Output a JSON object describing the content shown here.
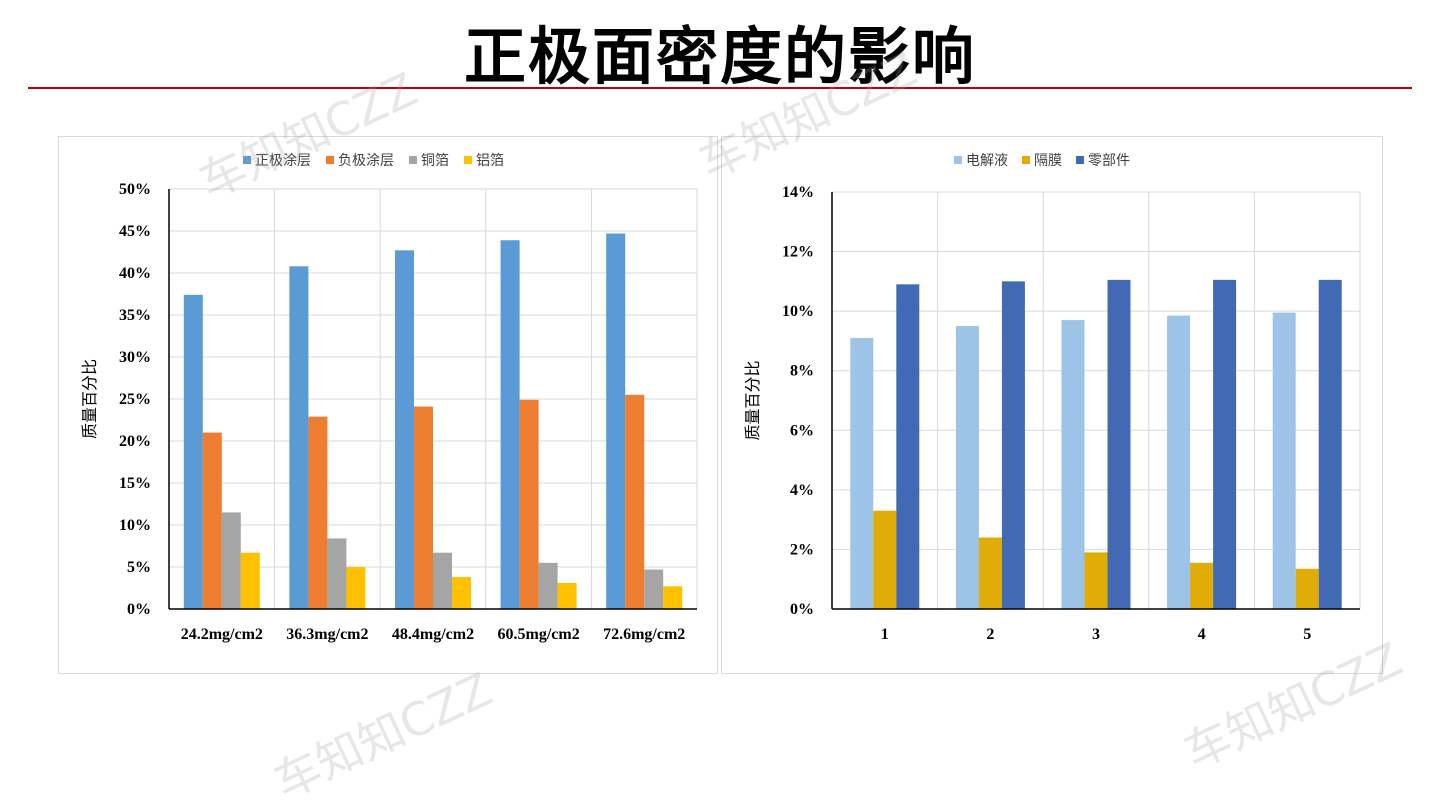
{
  "slide": {
    "title": "正极面密度的影响"
  },
  "watermark": {
    "text": "车知知CZZ"
  },
  "colors": {
    "title_rule": "#c00000"
  },
  "chart_data": [
    {
      "type": "bar",
      "title": "",
      "xlabel": "",
      "ylabel": "质量百分比",
      "ylim": [
        0,
        50
      ],
      "y_unit": "%",
      "y_ticks": [
        0,
        5,
        10,
        15,
        20,
        25,
        30,
        35,
        40,
        45,
        50
      ],
      "grid": true,
      "legend_position": "top",
      "categories": [
        "24.2mg/cm2",
        "36.3mg/cm2",
        "48.4mg/cm2",
        "60.5mg/cm2",
        "72.6mg/cm2"
      ],
      "series": [
        {
          "name": "正极涂层",
          "color": "#5b9bd5",
          "values": [
            37.4,
            40.8,
            42.7,
            43.9,
            44.7
          ]
        },
        {
          "name": "负极涂层",
          "color": "#ed7d31",
          "values": [
            21.0,
            22.9,
            24.1,
            24.9,
            25.5
          ]
        },
        {
          "name": "铜箔",
          "color": "#a5a5a5",
          "values": [
            11.5,
            8.4,
            6.7,
            5.5,
            4.7
          ]
        },
        {
          "name": "铝箔",
          "color": "#ffc000",
          "values": [
            6.7,
            5.0,
            3.8,
            3.1,
            2.7
          ]
        }
      ]
    },
    {
      "type": "bar",
      "title": "",
      "xlabel": "",
      "ylabel": "质量百分比",
      "ylim": [
        0,
        14
      ],
      "y_unit": "%",
      "y_ticks": [
        0,
        2,
        4,
        6,
        8,
        10,
        12,
        14
      ],
      "grid": true,
      "legend_position": "top",
      "categories": [
        "1",
        "2",
        "3",
        "4",
        "5"
      ],
      "series": [
        {
          "name": "电解液",
          "color": "#9dc3e6",
          "values": [
            9.1,
            9.5,
            9.7,
            9.85,
            9.95
          ]
        },
        {
          "name": "隔膜",
          "color": "#e0ac08",
          "values": [
            3.3,
            2.4,
            1.9,
            1.55,
            1.35
          ]
        },
        {
          "name": "零部件",
          "color": "#4169b4",
          "values": [
            10.9,
            11.0,
            11.05,
            11.05,
            11.05
          ]
        }
      ]
    }
  ]
}
